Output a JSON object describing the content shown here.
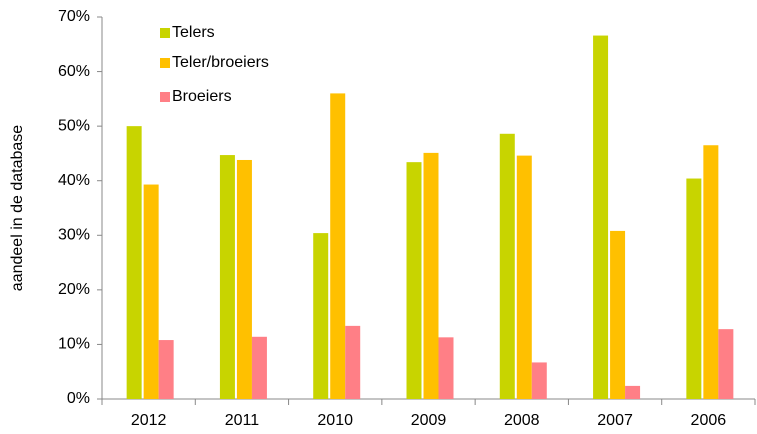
{
  "chart_data": {
    "type": "bar",
    "y_label": "aandeel in de database",
    "categories": [
      "2012",
      "2011",
      "2010",
      "2009",
      "2008",
      "2007",
      "2006"
    ],
    "series": [
      {
        "name": "Telers",
        "color": "#c8d400",
        "values": [
          50.0,
          44.7,
          30.4,
          43.4,
          48.6,
          66.6,
          40.4
        ]
      },
      {
        "name": "Teler/broeiers",
        "color": "#ffc000",
        "values": [
          39.3,
          43.8,
          56.0,
          45.1,
          44.6,
          30.8,
          46.5
        ]
      },
      {
        "name": "Broeiers",
        "color": "#ff7f86",
        "values": [
          10.8,
          11.4,
          13.4,
          11.3,
          6.7,
          2.4,
          12.8
        ]
      }
    ],
    "ylim": [
      0,
      70
    ],
    "yticks": [
      {
        "value": 0,
        "label": "0%"
      },
      {
        "value": 10,
        "label": "10%"
      },
      {
        "value": 20,
        "label": "20%"
      },
      {
        "value": 30,
        "label": "30%"
      },
      {
        "value": 40,
        "label": "40%"
      },
      {
        "value": 50,
        "label": "50%"
      },
      {
        "value": 60,
        "label": "60%"
      },
      {
        "value": 70,
        "label": "70%"
      }
    ],
    "grid": false,
    "legend": "top-left"
  }
}
